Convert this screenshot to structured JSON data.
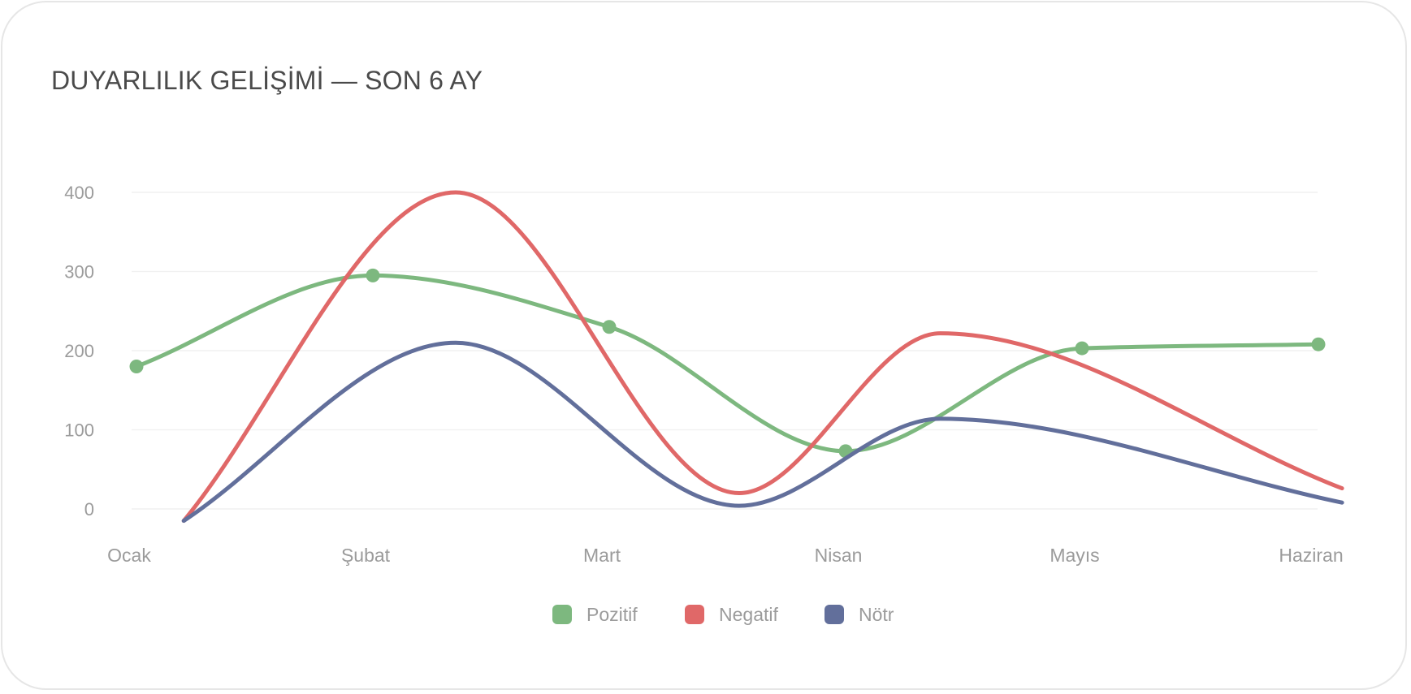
{
  "chart_data": {
    "type": "line",
    "title": "DUYARLILIK GELİŞİMİ — SON 6 AY",
    "categories": [
      "Ocak",
      "Şubat",
      "Mart",
      "Nisan",
      "Mayıs",
      "Haziran"
    ],
    "ylim": [
      0,
      400
    ],
    "yticks": [
      0,
      100,
      200,
      300,
      400
    ],
    "grid": true,
    "legend_position": "bottom",
    "xlabel": "",
    "ylabel": "",
    "series": [
      {
        "name": "Pozitif",
        "color": "#7db87f",
        "markers": true,
        "values": [
          180,
          295,
          230,
          73,
          203,
          208
        ],
        "x": [
          0,
          1,
          2,
          3,
          4,
          5
        ]
      },
      {
        "name": "Negatif",
        "color": "#e06868",
        "markers": false,
        "values": [
          -15,
          400,
          20,
          222,
          26
        ],
        "x": [
          0.2,
          1.35,
          2.55,
          3.4,
          5.1
        ]
      },
      {
        "name": "Nötr",
        "color": "#626f9b",
        "markers": false,
        "values": [
          -15,
          210,
          4,
          114,
          8
        ],
        "x": [
          0.2,
          1.35,
          2.55,
          3.4,
          5.1
        ]
      }
    ]
  }
}
